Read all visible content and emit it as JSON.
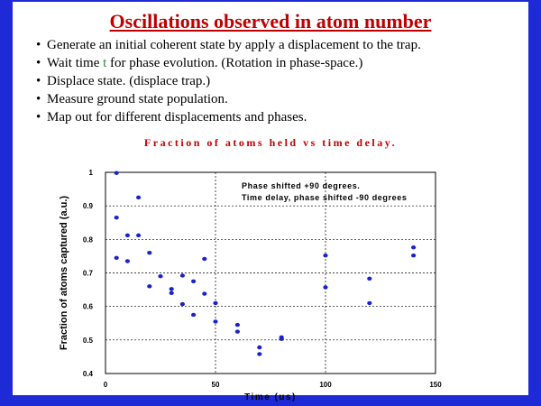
{
  "slide": {
    "title": "Oscillations observed in atom number",
    "bullets": [
      {
        "before": "Generate an initial coherent state by apply a displacement to the trap.",
        "var": "",
        "after": ""
      },
      {
        "before": "Wait time ",
        "var": "t",
        "after": " for phase evolution. (Rotation in phase-space.)"
      },
      {
        "before": "Displace state. (displace trap.)",
        "var": "",
        "after": ""
      },
      {
        "before": "Measure ground state population.",
        "var": "",
        "after": ""
      },
      {
        "before": "Map out for different displacements and phases.",
        "var": "",
        "after": ""
      }
    ],
    "border_color": "#1d2ad6",
    "title_color": "#c00000"
  },
  "chart_data": {
    "type": "scatter",
    "title": "Fraction of atoms held vs time delay.",
    "xlabel": "Time (us)",
    "ylabel": "Fraction of atoms captured (a.u.)",
    "xlim": [
      0,
      150
    ],
    "ylim": [
      0.4,
      1.0
    ],
    "xticks": [
      0,
      50,
      100,
      150
    ],
    "yticks": [
      0.4,
      0.5,
      0.6,
      0.7,
      0.8,
      0.9,
      1.0
    ],
    "ytick_labels": [
      "0.4",
      "0.5",
      "0.6",
      "0.7",
      "0.8",
      "0.9",
      "1"
    ],
    "grid": "dashed",
    "point_color": "#1a23c8",
    "annotations": [
      "Phase shifted +90 degrees.",
      "Time delay, phase shifted -90 degrees"
    ],
    "annotation_color": "#c00000",
    "points": [
      [
        5,
        0.998
      ],
      [
        5,
        0.865
      ],
      [
        5,
        0.745
      ],
      [
        10,
        0.812
      ],
      [
        10,
        0.735
      ],
      [
        15,
        0.925
      ],
      [
        15,
        0.812
      ],
      [
        20,
        0.76
      ],
      [
        20,
        0.66
      ],
      [
        25,
        0.69
      ],
      [
        30,
        0.652
      ],
      [
        30,
        0.64
      ],
      [
        35,
        0.692
      ],
      [
        35,
        0.607
      ],
      [
        40,
        0.675
      ],
      [
        40,
        0.575
      ],
      [
        45,
        0.742
      ],
      [
        45,
        0.638
      ],
      [
        50,
        0.61
      ],
      [
        50,
        0.555
      ],
      [
        60,
        0.545
      ],
      [
        60,
        0.525
      ],
      [
        70,
        0.478
      ],
      [
        70,
        0.458
      ],
      [
        80,
        0.508
      ],
      [
        80,
        0.503
      ],
      [
        100,
        0.752
      ],
      [
        100,
        0.657
      ],
      [
        120,
        0.683
      ],
      [
        120,
        0.61
      ],
      [
        140,
        0.776
      ],
      [
        140,
        0.752
      ]
    ]
  }
}
